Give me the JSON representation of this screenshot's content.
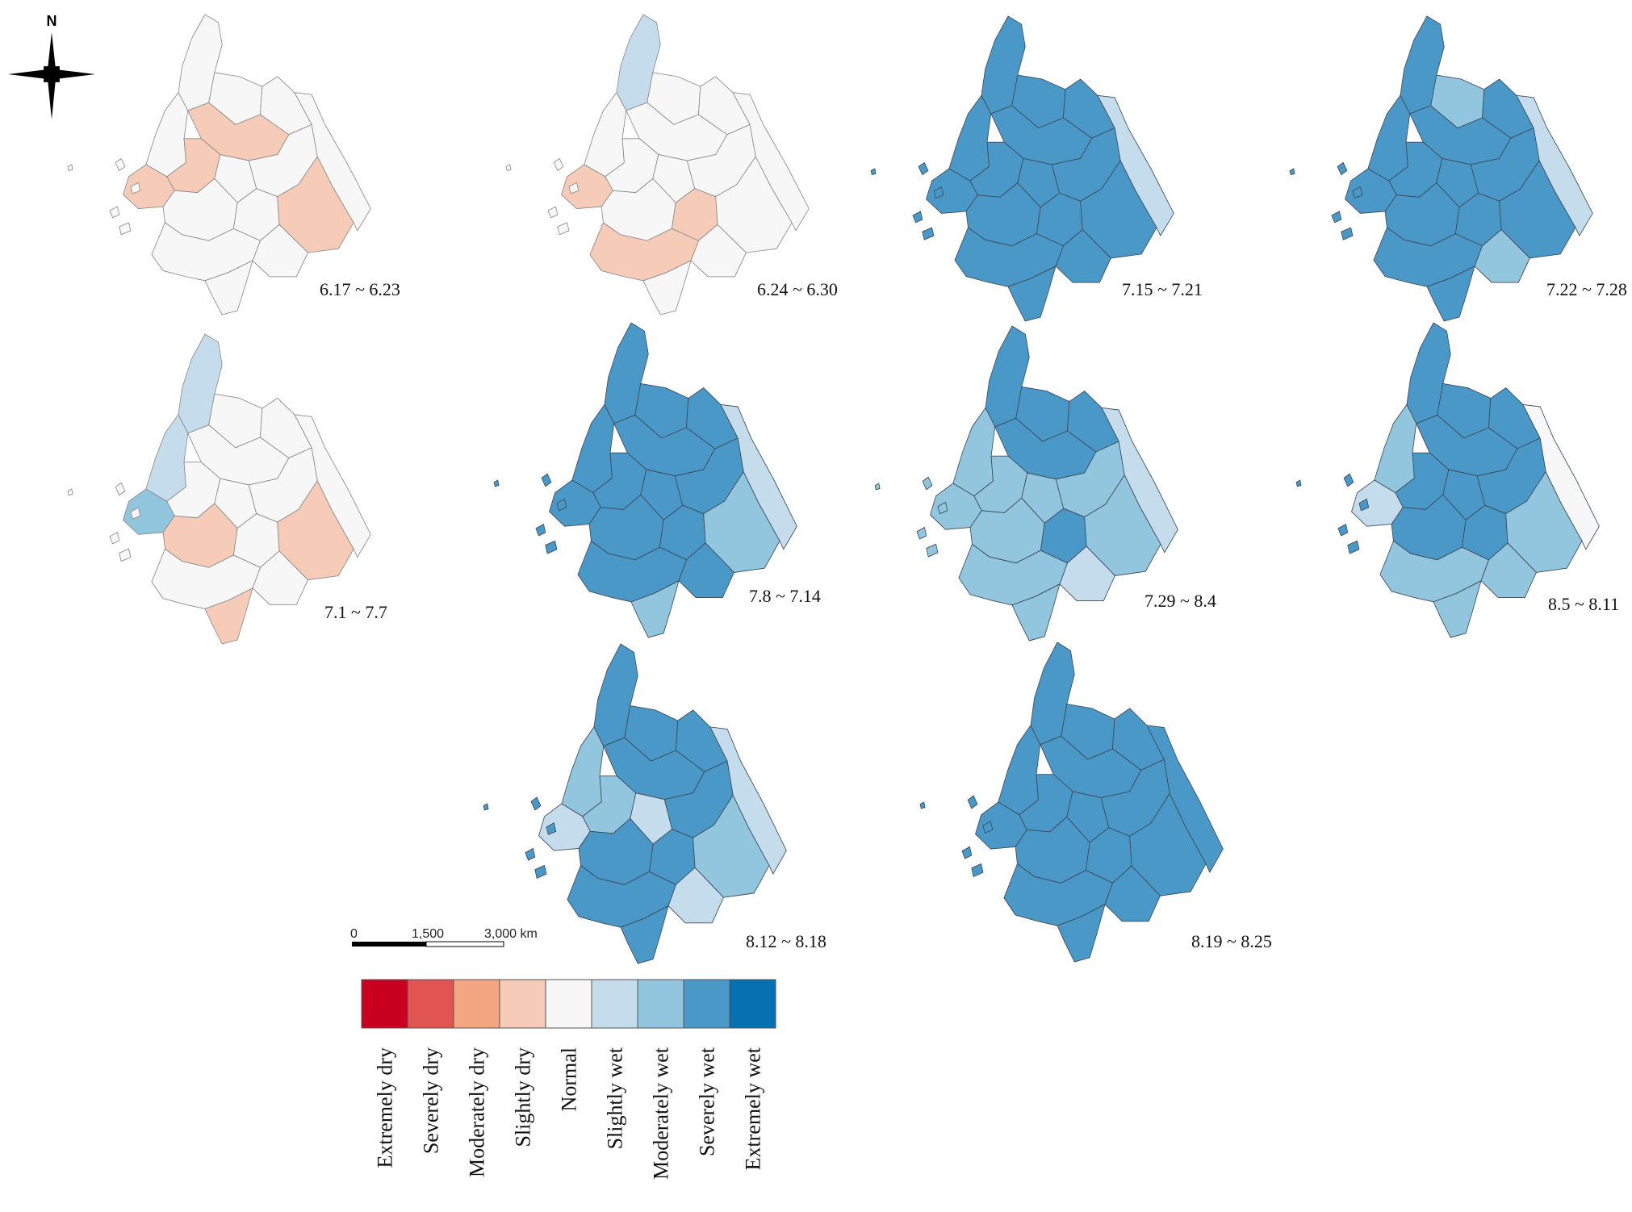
{
  "figure": {
    "legend": {
      "classes": [
        {
          "key": "extremely_dry",
          "label": "Extremely dry",
          "color": "#ca0020"
        },
        {
          "key": "severely_dry",
          "label": "Severely dry",
          "color": "#e05451"
        },
        {
          "key": "moderately_dry",
          "label": "Moderately dry",
          "color": "#f4a582"
        },
        {
          "key": "slightly_dry",
          "label": "Slightly dry",
          "color": "#f6cbb8"
        },
        {
          "key": "normal",
          "label": "Normal",
          "color": "#f7f7f7"
        },
        {
          "key": "slightly_wet",
          "label": "Slightly wet",
          "color": "#c5dcec"
        },
        {
          "key": "moderately_wet",
          "label": "Moderately wet",
          "color": "#92c5de"
        },
        {
          "key": "severely_wet",
          "label": "Severely wet",
          "color": "#4a98c8"
        },
        {
          "key": "extremely_wet",
          "label": "Extremely wet",
          "color": "#0571b0"
        }
      ]
    },
    "scale_bar": {
      "ticks": [
        "0",
        "1,500",
        "3,000 km"
      ]
    },
    "north_arrow": {
      "label": "N",
      "icon": "compass-star-icon"
    },
    "panels": [
      {
        "label": "6.17 ~ 6.23",
        "base": "normal",
        "patches": [
          {
            "region": "r5",
            "cls": "slightly_dry"
          },
          {
            "region": "r9",
            "cls": "slightly_dry"
          },
          {
            "region": "r6",
            "cls": "slightly_dry"
          },
          {
            "region": "r12",
            "cls": "slightly_dry"
          }
        ]
      },
      {
        "label": "6.24 ~ 6.30",
        "base": "normal",
        "patches": [
          {
            "region": "r1",
            "cls": "slightly_wet"
          },
          {
            "region": "r9",
            "cls": "slightly_dry"
          },
          {
            "region": "r15",
            "cls": "slightly_dry"
          },
          {
            "region": "r11",
            "cls": "slightly_dry"
          }
        ]
      },
      {
        "label": "7.15 ~ 7.21",
        "base": "severely_wet",
        "patches": [
          {
            "region": "r13",
            "cls": "slightly_wet"
          }
        ]
      },
      {
        "label": "7.22 ~ 7.28",
        "base": "severely_wet",
        "patches": [
          {
            "region": "r3",
            "cls": "moderately_wet"
          },
          {
            "region": "r13",
            "cls": "slightly_wet"
          },
          {
            "region": "r14",
            "cls": "moderately_wet"
          }
        ]
      },
      {
        "label": "7.1 ~ 7.7",
        "base": "normal",
        "patches": [
          {
            "region": "r1",
            "cls": "slightly_wet"
          },
          {
            "region": "r2",
            "cls": "slightly_wet"
          },
          {
            "region": "r9",
            "cls": "moderately_wet"
          },
          {
            "region": "r10",
            "cls": "slightly_dry"
          },
          {
            "region": "r16",
            "cls": "slightly_dry"
          },
          {
            "region": "r12",
            "cls": "slightly_dry"
          }
        ]
      },
      {
        "label": "7.8 ~ 7.14",
        "base": "severely_wet",
        "patches": [
          {
            "region": "r12",
            "cls": "moderately_wet"
          },
          {
            "region": "r13",
            "cls": "slightly_wet"
          },
          {
            "region": "r16",
            "cls": "moderately_wet"
          }
        ]
      },
      {
        "label": "7.29 ~ 8.4",
        "base": "moderately_wet",
        "patches": [
          {
            "region": "r1",
            "cls": "severely_wet"
          },
          {
            "region": "r3",
            "cls": "severely_wet"
          },
          {
            "region": "r4",
            "cls": "severely_wet"
          },
          {
            "region": "r5",
            "cls": "severely_wet"
          },
          {
            "region": "r11",
            "cls": "severely_wet"
          },
          {
            "region": "r13",
            "cls": "slightly_wet"
          },
          {
            "region": "r14",
            "cls": "slightly_wet"
          }
        ]
      },
      {
        "label": "8.5 ~ 8.11",
        "base": "severely_wet",
        "patches": [
          {
            "region": "r2",
            "cls": "moderately_wet"
          },
          {
            "region": "r9",
            "cls": "slightly_wet"
          },
          {
            "region": "r14",
            "cls": "moderately_wet"
          },
          {
            "region": "r15",
            "cls": "moderately_wet"
          },
          {
            "region": "r16",
            "cls": "moderately_wet"
          },
          {
            "region": "r12",
            "cls": "moderately_wet"
          },
          {
            "region": "r13",
            "cls": "normal"
          }
        ]
      },
      {
        "label": "8.12 ~ 8.18",
        "base": "severely_wet",
        "patches": [
          {
            "region": "r2",
            "cls": "moderately_wet"
          },
          {
            "region": "r6",
            "cls": "moderately_wet"
          },
          {
            "region": "r9",
            "cls": "slightly_wet"
          },
          {
            "region": "r14",
            "cls": "slightly_wet"
          },
          {
            "region": "r12",
            "cls": "moderately_wet"
          },
          {
            "region": "r13",
            "cls": "slightly_wet"
          },
          {
            "region": "r7",
            "cls": "slightly_wet"
          }
        ]
      },
      {
        "label": "8.19 ~ 8.25",
        "base": "severely_wet",
        "patches": []
      }
    ]
  }
}
